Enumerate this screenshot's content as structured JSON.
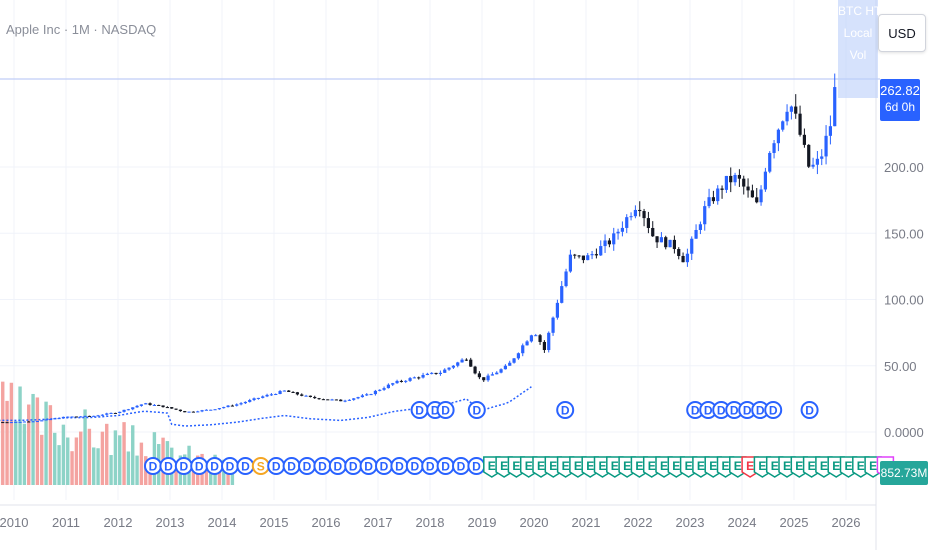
{
  "header": {
    "title": "Apple Inc · 1M · NASDAQ",
    "currency": "USD"
  },
  "overlay": {
    "lines": [
      "BTC HT",
      "Local",
      "Vol"
    ]
  },
  "last_price": {
    "value": "262.82",
    "countdown": "6d 0h"
  },
  "volume_tag": "852.73M",
  "colors": {
    "up": "#2962ff",
    "down": "#131722",
    "vol_up": "#8dd3c7",
    "vol_down": "#f4a3a0",
    "dividend": "#2962ff",
    "earnings_ok": "#089981",
    "earnings_bad": "#f23645",
    "split": "#f5a623",
    "grid": "#f0f3fa",
    "axis_text": "#787b86"
  },
  "chart_data": {
    "type": "candlestick",
    "x_ticks": [
      "2010",
      "2011",
      "2012",
      "2013",
      "2014",
      "2015",
      "2016",
      "2017",
      "2018",
      "2019",
      "2020",
      "2021",
      "2022",
      "2023",
      "2024",
      "2025",
      "2026"
    ],
    "y_ticks": [
      "0.0000",
      "50.00",
      "100.00",
      "150.00",
      "200.00"
    ],
    "ylim": [
      -20,
      270
    ],
    "xlim": [
      2009.7,
      2026.3
    ],
    "series": [
      {
        "name": "Apple Inc",
        "close_points": [
          [
            2010.0,
            7.5
          ],
          [
            2010.5,
            8.5
          ],
          [
            2011.0,
            11.5
          ],
          [
            2011.5,
            12.0
          ],
          [
            2012.0,
            15.0
          ],
          [
            2012.5,
            21.5
          ],
          [
            2012.9,
            19.0
          ],
          [
            2013.3,
            15.0
          ],
          [
            2013.8,
            17.0
          ],
          [
            2014.3,
            21.0
          ],
          [
            2014.8,
            27.0
          ],
          [
            2015.2,
            31.0
          ],
          [
            2015.7,
            26.0
          ],
          [
            2016.3,
            23.5
          ],
          [
            2016.8,
            28.0
          ],
          [
            2017.3,
            37.0
          ],
          [
            2017.8,
            42.0
          ],
          [
            2018.2,
            45.0
          ],
          [
            2018.7,
            56.0
          ],
          [
            2018.9,
            43.0
          ],
          [
            2019.0,
            39.0
          ],
          [
            2019.5,
            50.0
          ],
          [
            2020.0,
            77.0
          ],
          [
            2020.2,
            62.0
          ],
          [
            2020.5,
            106.0
          ],
          [
            2020.7,
            132.0
          ],
          [
            2021.0,
            131.0
          ],
          [
            2021.5,
            145.0
          ],
          [
            2022.0,
            174.0
          ],
          [
            2022.3,
            147.0
          ],
          [
            2022.7,
            140.0
          ],
          [
            2022.9,
            129.0
          ],
          [
            2023.3,
            170.0
          ],
          [
            2023.7,
            189.0
          ],
          [
            2023.9,
            192.0
          ],
          [
            2024.3,
            170.0
          ],
          [
            2024.5,
            210.0
          ],
          [
            2024.9,
            250.0
          ],
          [
            2025.0,
            241.0
          ],
          [
            2025.3,
            198.0
          ],
          [
            2025.5,
            205.0
          ],
          [
            2025.7,
            232.0
          ],
          [
            2025.8,
            262.82
          ]
        ]
      }
    ],
    "upper_dividend_markers": {
      "label": "D",
      "x": [
        2017.8,
        2018.1,
        2018.3,
        2018.9,
        2020.6,
        2023.1,
        2023.35,
        2023.6,
        2023.85,
        2024.1,
        2024.35,
        2024.6,
        2025.3
      ]
    },
    "lower_event_markers": [
      "D",
      "D",
      "D",
      "D",
      "D",
      "D",
      "D",
      "S",
      "D",
      "D",
      "D",
      "D",
      "D",
      "D",
      "D",
      "D",
      "D",
      "D",
      "D",
      "D",
      "D",
      "D",
      "E",
      "E",
      "E",
      "E",
      "E",
      "E",
      "E",
      "E",
      "E",
      "E",
      "E",
      "E",
      "E",
      "E",
      "E",
      "E",
      "E",
      "E",
      "E",
      "E",
      "E",
      "E",
      "E",
      "E",
      "E",
      "E",
      "E",
      "E",
      "E",
      "E",
      "E",
      "E",
      "E"
    ]
  }
}
